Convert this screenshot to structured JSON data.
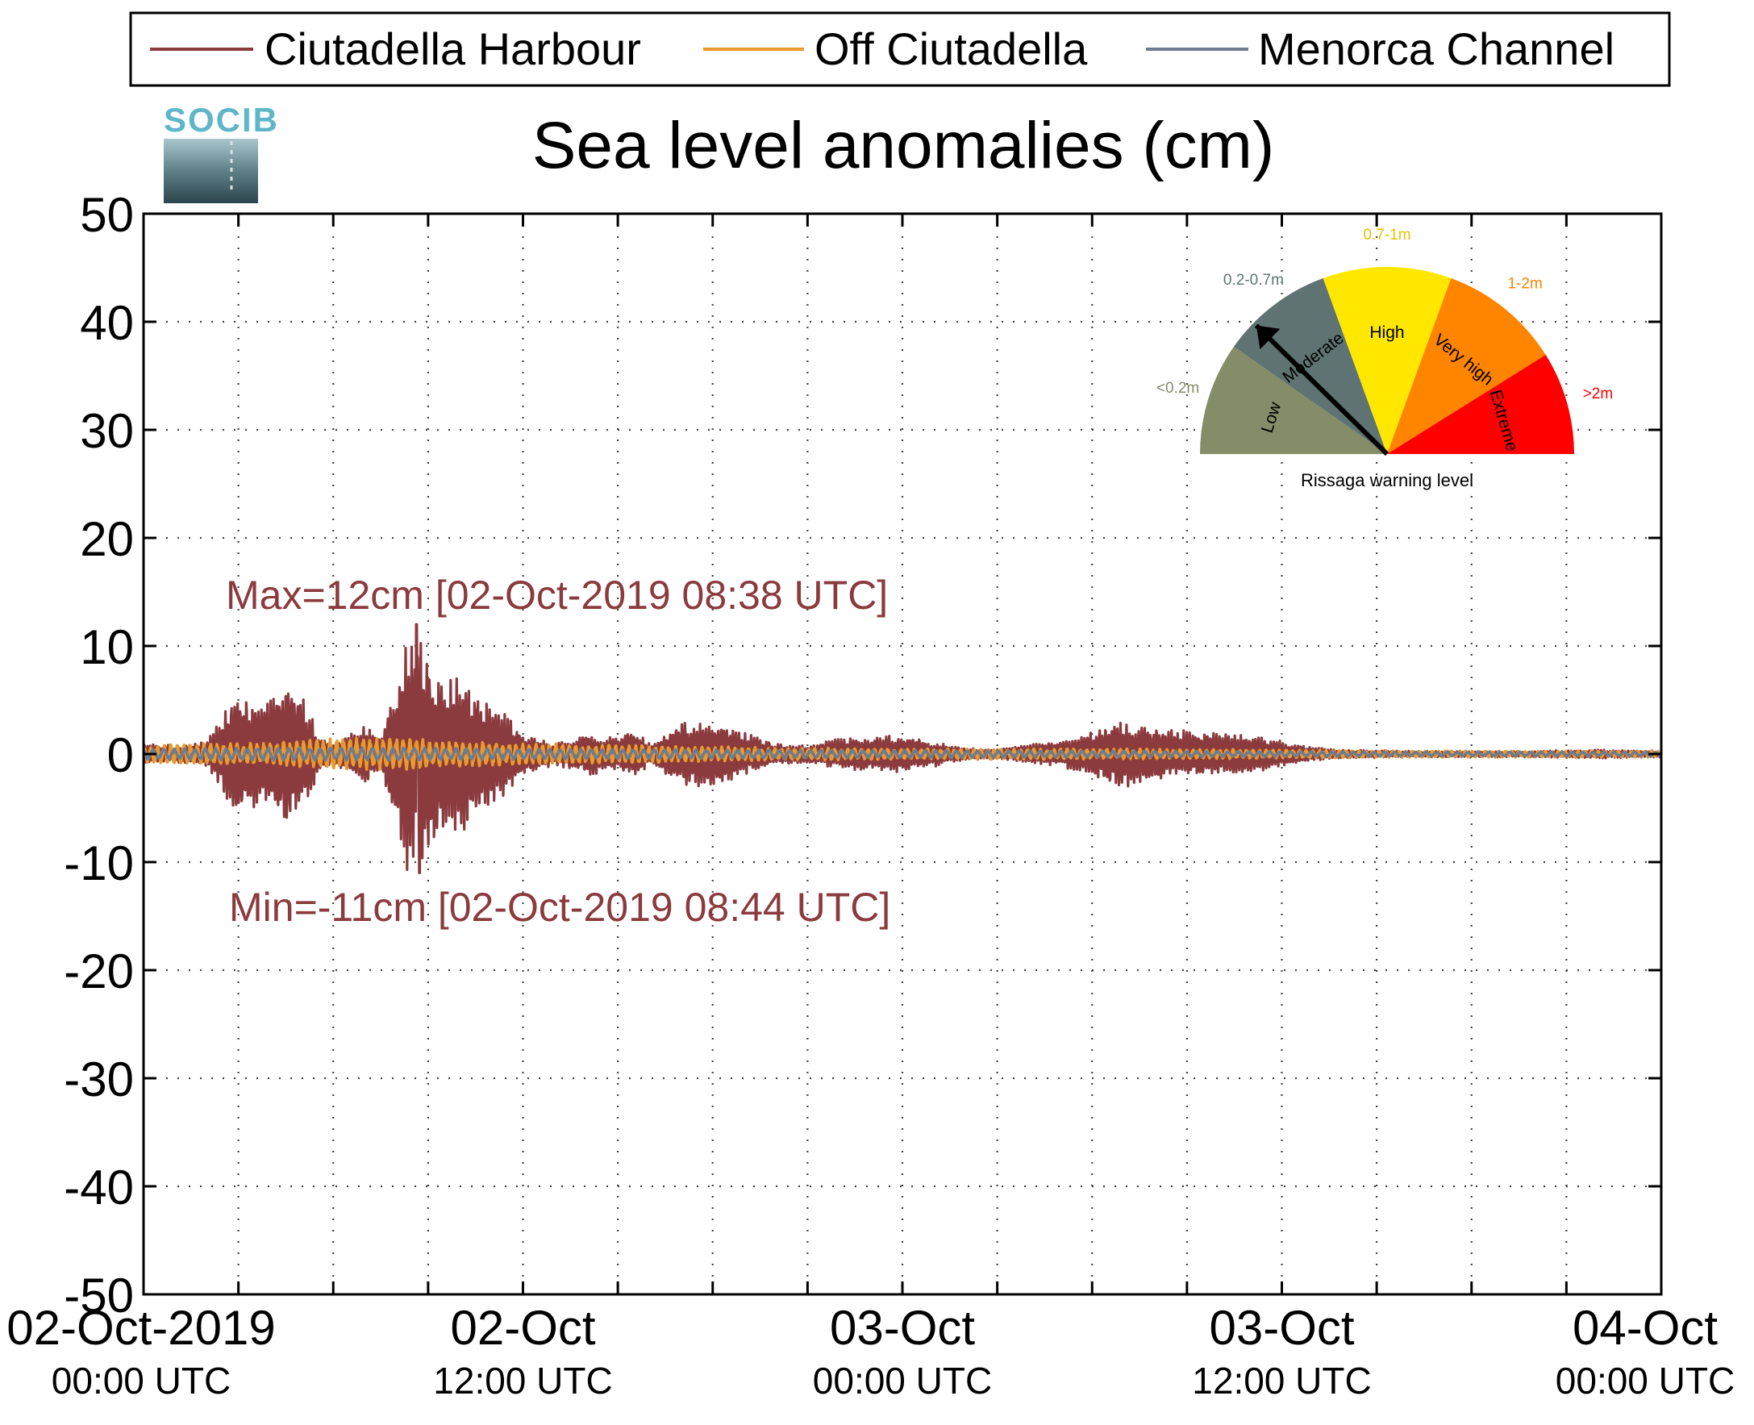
{
  "logo": {
    "text": "SOCIB"
  },
  "chart_data": {
    "type": "line",
    "title": "Sea level anomalies (cm)",
    "xlabel": "",
    "ylabel": "",
    "ylim": [
      -50,
      50
    ],
    "xlim_hours": [
      0,
      48
    ],
    "yticks": [
      50,
      40,
      30,
      20,
      10,
      0,
      -10,
      -20,
      -30,
      -40,
      -50
    ],
    "xticks": [
      {
        "hour": 0,
        "line1": "02-Oct-2019",
        "line2": "00:00 UTC"
      },
      {
        "hour": 12,
        "line1": "02-Oct",
        "line2": "12:00 UTC"
      },
      {
        "hour": 24,
        "line1": "03-Oct",
        "line2": "00:00 UTC"
      },
      {
        "hour": 36,
        "line1": "03-Oct",
        "line2": "12:00 UTC"
      },
      {
        "hour": 48,
        "line1": "04-Oct",
        "line2": "00:00 UTC"
      }
    ],
    "grid": true,
    "legend_position": "top",
    "series": [
      {
        "name": "Ciutadella Harbour",
        "color": "#8b3a3e",
        "envelope": [
          [
            0,
            1
          ],
          [
            1,
            0.8
          ],
          [
            2,
            1.2
          ],
          [
            3,
            6
          ],
          [
            3.5,
            5
          ],
          [
            4,
            6
          ],
          [
            4.5,
            7
          ],
          [
            5,
            6
          ],
          [
            5.5,
            2
          ],
          [
            6,
            1
          ],
          [
            7,
            3
          ],
          [
            7.5,
            1.5
          ],
          [
            8,
            7
          ],
          [
            8.3,
            12
          ],
          [
            8.6,
            11.5
          ],
          [
            9,
            10
          ],
          [
            9.5,
            7
          ],
          [
            10,
            8
          ],
          [
            10.5,
            6
          ],
          [
            11,
            5
          ],
          [
            12,
            2
          ],
          [
            13,
            1
          ],
          [
            14,
            2
          ],
          [
            15,
            1.5
          ],
          [
            15.5,
            2.5
          ],
          [
            16,
            1
          ],
          [
            17,
            3
          ],
          [
            18,
            3.2
          ],
          [
            19,
            2
          ],
          [
            20,
            1
          ],
          [
            21,
            0.8
          ],
          [
            22,
            1.5
          ],
          [
            24,
            1.8
          ],
          [
            25,
            1.2
          ],
          [
            26,
            0.6
          ],
          [
            27,
            0.5
          ],
          [
            28,
            0.9
          ],
          [
            29,
            1.2
          ],
          [
            31,
            3.2
          ],
          [
            32,
            2.5
          ],
          [
            33,
            2.2
          ],
          [
            34,
            2
          ],
          [
            35,
            1.8
          ],
          [
            36,
            1.2
          ],
          [
            37,
            0.6
          ],
          [
            38,
            0.4
          ],
          [
            40,
            0.3
          ],
          [
            42,
            0.3
          ],
          [
            44,
            0.3
          ],
          [
            46,
            0.4
          ],
          [
            48,
            0.3
          ]
        ],
        "peaks": {
          "max": {
            "value": 12,
            "time": "02-Oct-2019 08:38 UTC",
            "hour": 8.63
          },
          "min": {
            "value": -11,
            "time": "02-Oct-2019 08:44 UTC",
            "hour": 8.73
          }
        }
      },
      {
        "name": "Off Ciutadella",
        "color": "#e89a2c",
        "envelope": [
          [
            0,
            0.8
          ],
          [
            2,
            1
          ],
          [
            4,
            1
          ],
          [
            6,
            1.5
          ],
          [
            8,
            1.5
          ],
          [
            10,
            1.2
          ],
          [
            12,
            1
          ],
          [
            16,
            0.8
          ],
          [
            20,
            0.6
          ],
          [
            24,
            0.5
          ],
          [
            30,
            0.5
          ],
          [
            36,
            0.4
          ],
          [
            40,
            0.3
          ],
          [
            48,
            0.3
          ]
        ]
      },
      {
        "name": "Menorca Channel",
        "color": "#6f7b8f",
        "envelope": [
          [
            0,
            0.5
          ],
          [
            4,
            0.6
          ],
          [
            8,
            0.6
          ],
          [
            12,
            0.5
          ],
          [
            20,
            0.4
          ],
          [
            30,
            0.3
          ],
          [
            40,
            0.2
          ],
          [
            48,
            0.2
          ]
        ]
      }
    ],
    "annotations": {
      "max_text": "Max=12cm [02-Oct-2019 08:38 UTC]",
      "min_text": "Min=-11cm [02-Oct-2019 08:44 UTC]"
    }
  },
  "gauge": {
    "caption": "Rissaga warning level",
    "needle_level": "Moderate",
    "segments": [
      {
        "label": "Low",
        "range": "<0.2m",
        "color": "#858c68"
      },
      {
        "label": "Moderate",
        "range": "0.2-0.7m",
        "color": "#5f7472"
      },
      {
        "label": "High",
        "range": "0.7-1m",
        "color": "#ffe700"
      },
      {
        "label": "Very high",
        "range": "1-2m",
        "color": "#ff8400"
      },
      {
        "label": "Extreme",
        "range": ">2m",
        "color": "#ff0000"
      }
    ]
  }
}
